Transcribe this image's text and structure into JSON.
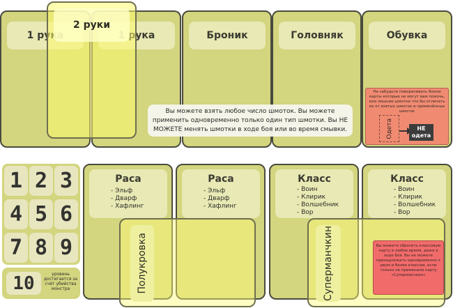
{
  "equipment": {
    "slots": [
      {
        "label": "1 рука"
      },
      {
        "label": "1 рука"
      },
      {
        "label": "Броник"
      },
      {
        "label": "Головняк"
      },
      {
        "label": "Обувка"
      }
    ],
    "two_hand_label": "2 руки",
    "note_text": "Вы можете взять любое число шмоток. Вы можете применить одновременно только один тип шмотки. Вы НЕ МОЖЕТЕ менять шмотки в ходе боя или во время смывки.",
    "reminder_text": "Не забудьте поворачивать боком карты которые не могут вам помочь, или лишние шмотки что бы отличать их от взятых шмоток и применённых шмоток",
    "worn_label": "Одета",
    "not_worn_label": "НЕ одета"
  },
  "levels": {
    "tiles": [
      "1",
      "2",
      "3",
      "4",
      "5",
      "6",
      "7",
      "8",
      "9"
    ],
    "ten": "10",
    "ten_text": "уровень достигается за счёт убийства монстра"
  },
  "race_cards": [
    {
      "title": "Раса",
      "items": [
        "Эльф",
        "Дварф",
        "Хафлинг"
      ]
    },
    {
      "title": "Раса",
      "items": [
        "Эльф",
        "Дварф",
        "Хафлинг"
      ]
    }
  ],
  "class_cards": [
    {
      "title": "Класс",
      "items": [
        "Воин",
        "Клирик",
        "Волшебник",
        "Вор"
      ]
    },
    {
      "title": "Класс",
      "items": [
        "Воин",
        "Клирик",
        "Волшебник",
        "Вор"
      ]
    }
  ],
  "half_breed_label": "Полукровка",
  "super_munchkin_label": "Суперманчкин",
  "class_note": "Вы можете сбросить классовую карту в любое время, даже в ходе боя. Вы не можете принадлежать одновременно к двум и более классам, если только не применили карту «Суперманчкин»"
}
